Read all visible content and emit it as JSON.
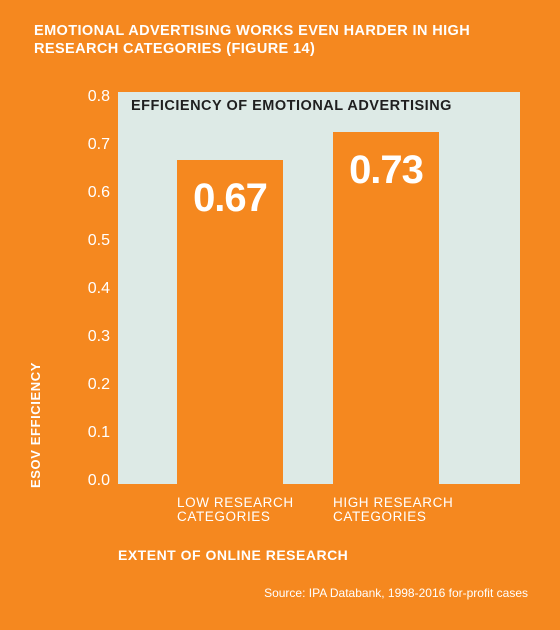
{
  "figure_title": "EMOTIONAL ADVERTISING WORKS EVEN HARDER IN HIGH RESEARCH CATEGORIES (FIGURE 14)",
  "source": "Source: IPA Databank, 1998-2016 for-profit cases",
  "colors": {
    "background": "#f5881f",
    "plot_area": "#ddeae6",
    "bar": "#f5881f",
    "text": "#ffffff",
    "inner_title": "#1f1f1f"
  },
  "chart_data": {
    "type": "bar",
    "title": "EFFICIENCY OF EMOTIONAL ADVERTISING",
    "xlabel": "EXTENT OF ONLINE RESEARCH",
    "ylabel": "ESOV EFFICIENCY",
    "categories": [
      "LOW RESEARCH CATEGORIES",
      "HIGH RESEARCH CATEGORIES"
    ],
    "category_lines": [
      [
        "LOW RESEARCH",
        "CATEGORIES"
      ],
      [
        "HIGH RESEARCH",
        "CATEGORIES"
      ]
    ],
    "values": [
      0.67,
      0.73
    ],
    "value_labels": [
      "0.67",
      "0.73"
    ],
    "ylim": [
      0,
      0.8
    ],
    "yticks": [
      "0.0",
      "0.1",
      "0.2",
      "0.3",
      "0.4",
      "0.5",
      "0.6",
      "0.7",
      "0.8"
    ],
    "grid": false,
    "legend": "none"
  }
}
